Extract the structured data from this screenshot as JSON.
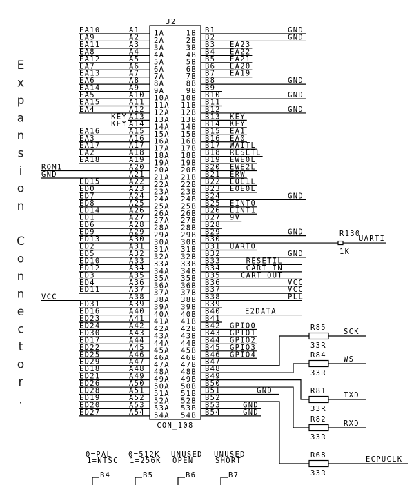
{
  "title": "Expansion Connector.",
  "connector": {
    "ref": "J2",
    "part": "CON_108"
  },
  "left_pins": [
    "EA10",
    "EA9",
    "EA11",
    "EA8",
    "EA12",
    "EA7",
    "EA13",
    "EA6",
    "EA14",
    "EA5",
    "EA15",
    "EA4",
    "KEY",
    "KEY",
    "EA16",
    "EA3",
    "EA17",
    "EA2",
    "EA18",
    "ROM1",
    "GND",
    "ED15",
    "ED0",
    "ED7",
    "ED8",
    "ED14",
    "ED1",
    "ED6",
    "ED9",
    "ED13",
    "ED2",
    "ED5",
    "ED10",
    "ED12",
    "ED3",
    "ED4",
    "ED11",
    "VCC",
    "ED31",
    "ED16",
    "ED23",
    "ED24",
    "ED30",
    "ED17",
    "ED22",
    "ED25",
    "ED29",
    "ED18",
    "ED21",
    "ED26",
    "ED28",
    "ED19",
    "ED20",
    "ED27"
  ],
  "right_pins": [
    "GND",
    "GND",
    "EA23",
    "EA22",
    "EA21",
    "EA20",
    "EA19",
    "GND",
    "",
    "GND",
    "",
    "GND",
    "KEY",
    "KEY",
    "EA1",
    "EA0",
    "WAITL",
    "RESETL",
    "EWE0L",
    "EWE2L",
    "ERW",
    "EOE1L",
    "EOE0L",
    "GND",
    "EINT0",
    "EINT1",
    "9V",
    "",
    "GND",
    "",
    "UART0",
    "GND",
    "RESETIL",
    "CART_IN",
    "CART_OUT",
    "VCC",
    "VCC",
    "PLL",
    "",
    "E2DATA",
    "",
    "GPIO0",
    "GPIO1",
    "GPIO2",
    "GPIO3",
    "GPIO4",
    "",
    "",
    "",
    "",
    "GND",
    "",
    "GND",
    "GND"
  ],
  "r130": {
    "ref": "R130",
    "value": "1K",
    "net": "UARTI",
    "pin": "B30"
  },
  "resistors": [
    {
      "ref": "R85",
      "value": "33R",
      "net": "SCK",
      "pin": "B47"
    },
    {
      "ref": "R84",
      "value": "33R",
      "net": "WS",
      "pin": "B48"
    },
    {
      "ref": "R81",
      "value": "33R",
      "net": "TXD",
      "pin": "B49"
    },
    {
      "ref": "R82",
      "value": "33R",
      "net": "RXD",
      "pin": "B50"
    },
    {
      "ref": "R68",
      "value": "33R",
      "net": "ECPUCLK",
      "pin": "B52"
    }
  ],
  "jumpers": [
    {
      "line1": "0=PAL",
      "line2": "1=NTSC",
      "pin": "B4"
    },
    {
      "line1": "0=512K",
      "line2": "1=256K",
      "pin": "B5"
    },
    {
      "line1": "UNUSED",
      "line2": "OPEN",
      "pin": "B6"
    },
    {
      "line1": "UNUSED",
      "line2": "SHORT",
      "pin": "B7"
    }
  ]
}
